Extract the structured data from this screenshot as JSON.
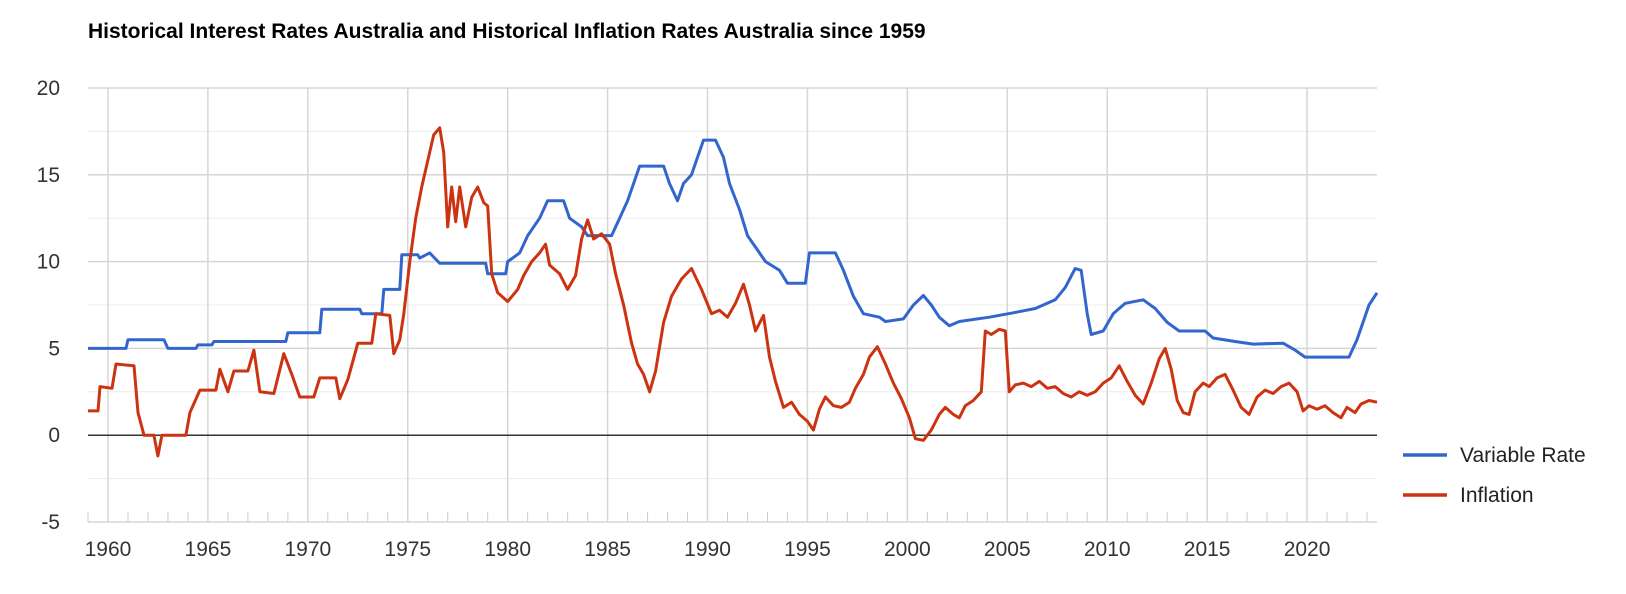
{
  "chart_data": {
    "type": "line",
    "title": "Historical Interest Rates Australia and Historical Inflation Rates Australia since 1959",
    "xlabel": "",
    "ylabel": "",
    "xlim": [
      1959,
      2023.5
    ],
    "ylim": [
      -5,
      20
    ],
    "x_ticks": [
      1960,
      1965,
      1970,
      1975,
      1980,
      1985,
      1990,
      1995,
      2000,
      2005,
      2010,
      2015,
      2020
    ],
    "y_ticks": [
      20,
      15,
      10,
      5,
      0,
      -5
    ],
    "grid": true,
    "legend_position": "right",
    "series": [
      {
        "name": "Variable Rate",
        "color": "#3366cc",
        "points": [
          [
            1959,
            5.0
          ],
          [
            1960.9,
            5.0
          ],
          [
            1961,
            5.5
          ],
          [
            1962.8,
            5.5
          ],
          [
            1963,
            5.0
          ],
          [
            1964.4,
            5.0
          ],
          [
            1964.5,
            5.2
          ],
          [
            1965.2,
            5.2
          ],
          [
            1965.3,
            5.4
          ],
          [
            1968.9,
            5.4
          ],
          [
            1969,
            5.9
          ],
          [
            1970.6,
            5.9
          ],
          [
            1970.7,
            7.25
          ],
          [
            1972.6,
            7.25
          ],
          [
            1972.7,
            7.0
          ],
          [
            1973.7,
            7.0
          ],
          [
            1973.8,
            8.4
          ],
          [
            1974.6,
            8.4
          ],
          [
            1974.7,
            10.4
          ],
          [
            1975.5,
            10.4
          ],
          [
            1975.6,
            10.2
          ],
          [
            1976.1,
            10.5
          ],
          [
            1976.6,
            9.9
          ],
          [
            1978.9,
            9.9
          ],
          [
            1979,
            9.3
          ],
          [
            1979.9,
            9.3
          ],
          [
            1980,
            10.0
          ],
          [
            1980.6,
            10.5
          ],
          [
            1981,
            11.5
          ],
          [
            1981.6,
            12.5
          ],
          [
            1982,
            13.5
          ],
          [
            1982.8,
            13.5
          ],
          [
            1983.1,
            12.5
          ],
          [
            1983.7,
            12.0
          ],
          [
            1984,
            11.5
          ],
          [
            1985.2,
            11.5
          ],
          [
            1985.6,
            12.5
          ],
          [
            1986,
            13.5
          ],
          [
            1986.3,
            14.5
          ],
          [
            1986.6,
            15.5
          ],
          [
            1987.8,
            15.5
          ],
          [
            1988.1,
            14.5
          ],
          [
            1988.5,
            13.5
          ],
          [
            1988.8,
            14.5
          ],
          [
            1989.2,
            15.0
          ],
          [
            1989.5,
            16.0
          ],
          [
            1989.8,
            17.0
          ],
          [
            1990.4,
            17.0
          ],
          [
            1990.8,
            16.0
          ],
          [
            1991.1,
            14.5
          ],
          [
            1991.6,
            13.0
          ],
          [
            1992,
            11.5
          ],
          [
            1992.6,
            10.5
          ],
          [
            1992.9,
            10.0
          ],
          [
            1993.6,
            9.5
          ],
          [
            1994,
            8.75
          ],
          [
            1994.9,
            8.75
          ],
          [
            1995.1,
            10.5
          ],
          [
            1996.4,
            10.5
          ],
          [
            1996.8,
            9.5
          ],
          [
            1997.3,
            8.0
          ],
          [
            1997.8,
            7.0
          ],
          [
            1998.6,
            6.8
          ],
          [
            1998.9,
            6.55
          ],
          [
            1999.8,
            6.7
          ],
          [
            2000.3,
            7.5
          ],
          [
            2000.8,
            8.05
          ],
          [
            2001.2,
            7.5
          ],
          [
            2001.6,
            6.8
          ],
          [
            2002.1,
            6.3
          ],
          [
            2002.6,
            6.55
          ],
          [
            2004.1,
            6.8
          ],
          [
            2005.3,
            7.05
          ],
          [
            2006.4,
            7.3
          ],
          [
            2007.4,
            7.8
          ],
          [
            2007.9,
            8.5
          ],
          [
            2008.4,
            9.6
          ],
          [
            2008.7,
            9.5
          ],
          [
            2009.0,
            7.0
          ],
          [
            2009.2,
            5.8
          ],
          [
            2009.8,
            6.0
          ],
          [
            2010.3,
            7.0
          ],
          [
            2010.9,
            7.6
          ],
          [
            2011.8,
            7.8
          ],
          [
            2012.4,
            7.3
          ],
          [
            2013.0,
            6.5
          ],
          [
            2013.6,
            6.0
          ],
          [
            2014.9,
            6.0
          ],
          [
            2015.3,
            5.6
          ],
          [
            2016.4,
            5.4
          ],
          [
            2017.3,
            5.25
          ],
          [
            2018.8,
            5.3
          ],
          [
            2019.4,
            4.9
          ],
          [
            2019.9,
            4.5
          ],
          [
            2022.1,
            4.5
          ],
          [
            2022.5,
            5.5
          ],
          [
            2022.8,
            6.5
          ],
          [
            2023.1,
            7.5
          ],
          [
            2023.5,
            8.2
          ]
        ]
      },
      {
        "name": "Inflation",
        "color": "#cc3311",
        "points": [
          [
            1959,
            1.4
          ],
          [
            1959.5,
            1.4
          ],
          [
            1959.6,
            2.8
          ],
          [
            1960.2,
            2.7
          ],
          [
            1960.4,
            4.1
          ],
          [
            1961.3,
            4.0
          ],
          [
            1961.5,
            1.3
          ],
          [
            1961.8,
            0.0
          ],
          [
            1962.3,
            0.0
          ],
          [
            1962.5,
            -1.2
          ],
          [
            1962.7,
            0.0
          ],
          [
            1963.9,
            0.0
          ],
          [
            1964.1,
            1.3
          ],
          [
            1964.6,
            2.6
          ],
          [
            1965.4,
            2.6
          ],
          [
            1965.6,
            3.8
          ],
          [
            1966.0,
            2.5
          ],
          [
            1966.3,
            3.7
          ],
          [
            1967.0,
            3.7
          ],
          [
            1967.3,
            4.9
          ],
          [
            1967.6,
            2.5
          ],
          [
            1968.3,
            2.4
          ],
          [
            1968.8,
            4.7
          ],
          [
            1969.2,
            3.5
          ],
          [
            1969.6,
            2.2
          ],
          [
            1970.3,
            2.2
          ],
          [
            1970.6,
            3.3
          ],
          [
            1971.4,
            3.3
          ],
          [
            1971.6,
            2.1
          ],
          [
            1972.0,
            3.2
          ],
          [
            1972.5,
            5.3
          ],
          [
            1973.2,
            5.3
          ],
          [
            1973.4,
            7.0
          ],
          [
            1974.1,
            6.9
          ],
          [
            1974.3,
            4.7
          ],
          [
            1974.6,
            5.5
          ],
          [
            1974.8,
            7.0
          ],
          [
            1975.1,
            10.0
          ],
          [
            1975.4,
            12.5
          ],
          [
            1975.7,
            14.3
          ],
          [
            1976.0,
            15.8
          ],
          [
            1976.3,
            17.3
          ],
          [
            1976.6,
            17.7
          ],
          [
            1976.8,
            16.3
          ],
          [
            1977.0,
            12.0
          ],
          [
            1977.2,
            14.3
          ],
          [
            1977.4,
            12.3
          ],
          [
            1977.6,
            14.3
          ],
          [
            1977.9,
            12.0
          ],
          [
            1978.2,
            13.7
          ],
          [
            1978.5,
            14.3
          ],
          [
            1978.8,
            13.4
          ],
          [
            1979.0,
            13.2
          ],
          [
            1979.2,
            9.3
          ],
          [
            1979.5,
            8.2
          ],
          [
            1980.0,
            7.7
          ],
          [
            1980.5,
            8.4
          ],
          [
            1980.8,
            9.2
          ],
          [
            1981.2,
            10.0
          ],
          [
            1981.6,
            10.5
          ],
          [
            1981.9,
            11.0
          ],
          [
            1982.1,
            9.8
          ],
          [
            1982.6,
            9.3
          ],
          [
            1983.0,
            8.4
          ],
          [
            1983.4,
            9.2
          ],
          [
            1983.7,
            11.3
          ],
          [
            1984.0,
            12.4
          ],
          [
            1984.3,
            11.3
          ],
          [
            1984.7,
            11.6
          ],
          [
            1985.1,
            11.0
          ],
          [
            1985.4,
            9.3
          ],
          [
            1985.8,
            7.5
          ],
          [
            1986.2,
            5.3
          ],
          [
            1986.5,
            4.1
          ],
          [
            1986.8,
            3.5
          ],
          [
            1987.1,
            2.5
          ],
          [
            1987.4,
            3.7
          ],
          [
            1987.8,
            6.5
          ],
          [
            1988.2,
            8.0
          ],
          [
            1988.7,
            9.0
          ],
          [
            1989.2,
            9.6
          ],
          [
            1989.7,
            8.4
          ],
          [
            1990.2,
            7.0
          ],
          [
            1990.6,
            7.2
          ],
          [
            1991.0,
            6.8
          ],
          [
            1991.4,
            7.6
          ],
          [
            1991.8,
            8.7
          ],
          [
            1992.1,
            7.5
          ],
          [
            1992.4,
            6.0
          ],
          [
            1992.8,
            6.9
          ],
          [
            1993.1,
            4.5
          ],
          [
            1993.4,
            3.1
          ],
          [
            1993.8,
            1.6
          ],
          [
            1994.2,
            1.9
          ],
          [
            1994.6,
            1.2
          ],
          [
            1995.0,
            0.8
          ],
          [
            1995.3,
            0.3
          ],
          [
            1995.6,
            1.5
          ],
          [
            1995.9,
            2.2
          ],
          [
            1996.3,
            1.7
          ],
          [
            1996.7,
            1.6
          ],
          [
            1997.1,
            1.9
          ],
          [
            1997.4,
            2.7
          ],
          [
            1997.8,
            3.5
          ],
          [
            1998.1,
            4.5
          ],
          [
            1998.5,
            5.1
          ],
          [
            1998.9,
            4.1
          ],
          [
            1999.3,
            3.0
          ],
          [
            1999.7,
            2.1
          ],
          [
            2000.1,
            1.0
          ],
          [
            2000.4,
            -0.2
          ],
          [
            2000.8,
            -0.3
          ],
          [
            2001.2,
            0.3
          ],
          [
            2001.6,
            1.2
          ],
          [
            2001.9,
            1.6
          ],
          [
            2002.3,
            1.2
          ],
          [
            2002.6,
            1.0
          ],
          [
            2002.9,
            1.7
          ],
          [
            2003.3,
            2.0
          ],
          [
            2003.7,
            2.5
          ],
          [
            2003.9,
            6.0
          ],
          [
            2004.2,
            5.8
          ],
          [
            2004.6,
            6.1
          ],
          [
            2004.9,
            6.0
          ],
          [
            2005.1,
            2.5
          ],
          [
            2005.4,
            2.9
          ],
          [
            2005.8,
            3.0
          ],
          [
            2006.2,
            2.8
          ],
          [
            2006.6,
            3.1
          ],
          [
            2007.0,
            2.7
          ],
          [
            2007.4,
            2.8
          ],
          [
            2007.8,
            2.4
          ],
          [
            2008.2,
            2.2
          ],
          [
            2008.6,
            2.5
          ],
          [
            2009.0,
            2.3
          ],
          [
            2009.4,
            2.5
          ],
          [
            2009.8,
            3.0
          ],
          [
            2010.2,
            3.3
          ],
          [
            2010.6,
            4.0
          ],
          [
            2011.0,
            3.1
          ],
          [
            2011.4,
            2.3
          ],
          [
            2011.8,
            1.8
          ],
          [
            2012.2,
            3.0
          ],
          [
            2012.6,
            4.4
          ],
          [
            2012.9,
            5.0
          ],
          [
            2013.2,
            3.8
          ],
          [
            2013.5,
            2.0
          ],
          [
            2013.8,
            1.3
          ],
          [
            2014.1,
            1.2
          ],
          [
            2014.4,
            2.5
          ],
          [
            2014.8,
            3.0
          ],
          [
            2015.1,
            2.8
          ],
          [
            2015.5,
            3.3
          ],
          [
            2015.9,
            3.5
          ],
          [
            2016.3,
            2.6
          ],
          [
            2016.7,
            1.6
          ],
          [
            2017.1,
            1.2
          ],
          [
            2017.5,
            2.2
          ],
          [
            2017.9,
            2.6
          ],
          [
            2018.3,
            2.4
          ],
          [
            2018.7,
            2.8
          ],
          [
            2019.1,
            3.0
          ],
          [
            2019.5,
            2.5
          ],
          [
            2019.8,
            1.4
          ],
          [
            2020.1,
            1.7
          ],
          [
            2020.5,
            1.5
          ],
          [
            2020.9,
            1.7
          ],
          [
            2021.3,
            1.3
          ],
          [
            2021.7,
            1.0
          ],
          [
            2022.0,
            1.6
          ],
          [
            2022.4,
            1.3
          ],
          [
            2022.7,
            1.8
          ],
          [
            2023.1,
            2.0
          ],
          [
            2023.5,
            1.9
          ]
        ]
      }
    ]
  }
}
